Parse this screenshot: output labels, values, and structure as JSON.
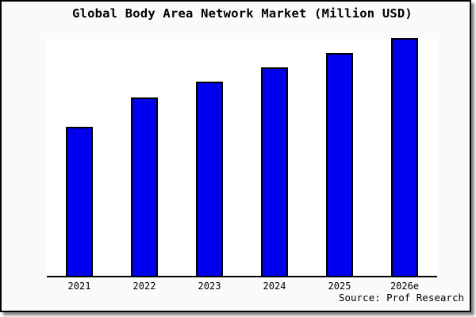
{
  "window": {
    "title": "Global Body Area Network Market (Million USD)",
    "source_credit": "Source: Prof Research"
  },
  "colors": {
    "bar_fill": "#0000ee",
    "bar_border": "#000000",
    "frame_background": "#fafafa",
    "plot_background": "#ffffff",
    "axis": "#000000",
    "frame_border": "#000000",
    "drop_shadow": "#8a8a8a",
    "text": "#000000"
  },
  "chart_data": {
    "type": "bar",
    "title": "Global Body Area Network Market (Million USD)",
    "categories": [
      "2021",
      "2022",
      "2023",
      "2024",
      "2025",
      "2026e"
    ],
    "values": [
      188,
      225,
      245,
      263,
      281,
      300
    ],
    "value_note": "no y-axis scale shown in image; values are relative bar heights (pixels), max bar = 300",
    "xlabel": "",
    "ylabel": "",
    "ylim": [
      0,
      301
    ],
    "grid": false,
    "legend": false,
    "y_axis_visible": false,
    "x_axis_visible": true,
    "source": "Source: Prof Research"
  }
}
